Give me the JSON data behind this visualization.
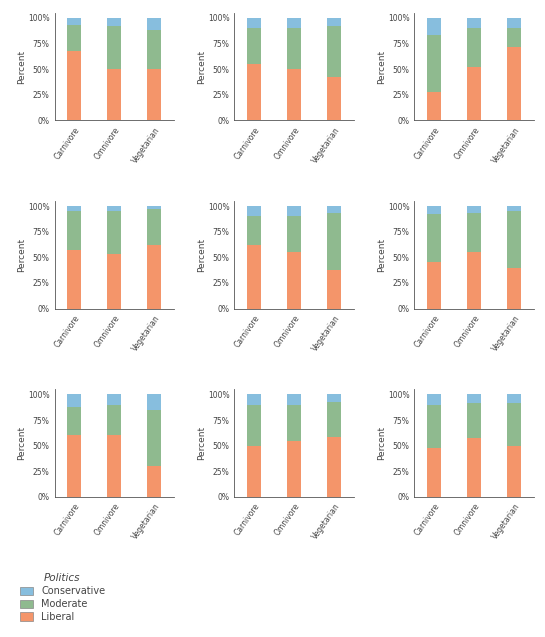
{
  "colors": {
    "liberal": "#F4956A",
    "moderate": "#8FBA8F",
    "conservative": "#87BEDE"
  },
  "categories": [
    "Carnivore",
    "Omnivore",
    "Vegetarian"
  ],
  "subplots": [
    {
      "liberal": [
        68,
        50,
        50
      ],
      "moderate": [
        25,
        42,
        38
      ],
      "conservative": [
        7,
        8,
        12
      ]
    },
    {
      "liberal": [
        55,
        50,
        42
      ],
      "moderate": [
        35,
        40,
        50
      ],
      "conservative": [
        10,
        10,
        8
      ]
    },
    {
      "liberal": [
        28,
        52,
        72
      ],
      "moderate": [
        55,
        38,
        18
      ],
      "conservative": [
        17,
        10,
        10
      ]
    },
    {
      "liberal": [
        57,
        53,
        62
      ],
      "moderate": [
        38,
        42,
        35
      ],
      "conservative": [
        5,
        5,
        3
      ]
    },
    {
      "liberal": [
        62,
        55,
        38
      ],
      "moderate": [
        28,
        35,
        55
      ],
      "conservative": [
        10,
        10,
        7
      ]
    },
    {
      "liberal": [
        45,
        55,
        40
      ],
      "moderate": [
        47,
        38,
        55
      ],
      "conservative": [
        8,
        7,
        5
      ]
    },
    {
      "liberal": [
        60,
        60,
        30
      ],
      "moderate": [
        28,
        30,
        55
      ],
      "conservative": [
        12,
        10,
        15
      ]
    },
    {
      "liberal": [
        50,
        55,
        58
      ],
      "moderate": [
        40,
        35,
        35
      ],
      "conservative": [
        10,
        10,
        7
      ]
    },
    {
      "liberal": [
        48,
        57,
        50
      ],
      "moderate": [
        42,
        35,
        42
      ],
      "conservative": [
        10,
        8,
        8
      ]
    }
  ],
  "ylabel": "Percent",
  "yticks": [
    0,
    25,
    50,
    75,
    100
  ],
  "yticklabels": [
    "0%",
    "25%",
    "50%",
    "75%",
    "100%"
  ],
  "figure_bg": "#FFFFFF",
  "axes_bg": "#FFFFFF",
  "label_fontsize": 6.5,
  "tick_fontsize": 5.5,
  "legend_fontsize": 7,
  "legend_title_fontsize": 7.5,
  "bar_width": 0.35,
  "spine_color": "#555555"
}
